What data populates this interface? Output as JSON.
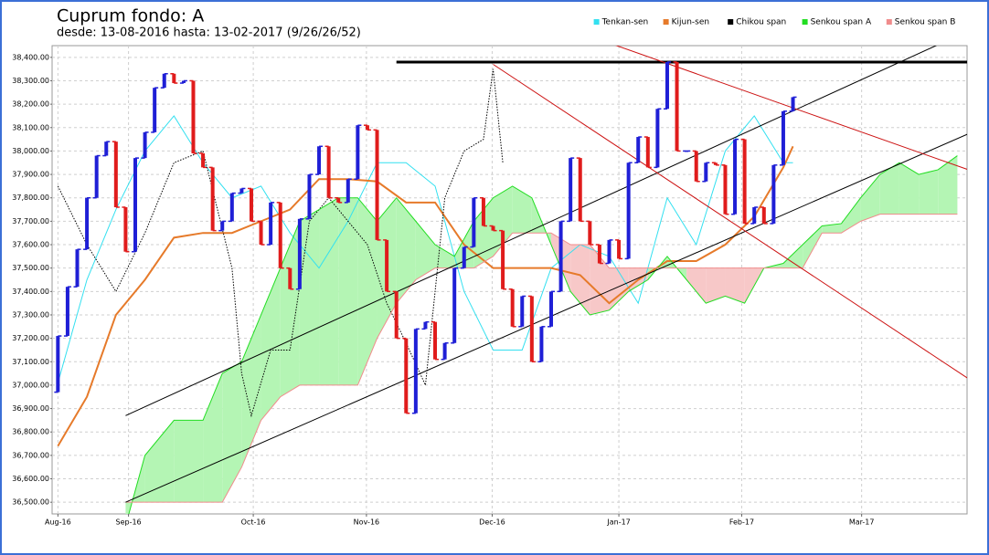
{
  "chart_data": {
    "type": "ohlc",
    "title": "Cuprum fondo: A",
    "subtitle": "desde: 13-08-2016 hasta: 13-02-2017 (9/26/26/52)",
    "up_color": "#1f1fd6",
    "down_color": "#e01c1c",
    "cloud_up_color": "#b4f5b4",
    "cloud_down_color": "#f7c8c8",
    "grid": true,
    "legend": "top-right",
    "xlim": [
      -0.6,
      94
    ],
    "xticks": [
      {
        "value": 0,
        "label": "Aug-16"
      },
      {
        "value": 7.3,
        "label": "Sep-16"
      },
      {
        "value": 20.2,
        "label": "Oct-16"
      },
      {
        "value": 31.9,
        "label": "Nov-16"
      },
      {
        "value": 44.9,
        "label": "Dec-16"
      },
      {
        "value": 58,
        "label": "Jan-17"
      },
      {
        "value": 70.7,
        "label": "Feb-17"
      },
      {
        "value": 83.1,
        "label": "Mar-17"
      }
    ],
    "ylim": [
      36450,
      38450
    ],
    "yticks": [
      {
        "value": 36500,
        "label": "36,500.00"
      },
      {
        "value": 36600,
        "label": "36,600.00"
      },
      {
        "value": 36700,
        "label": "36,700.00"
      },
      {
        "value": 36800,
        "label": "36,800.00"
      },
      {
        "value": 36900,
        "label": "36,900.00"
      },
      {
        "value": 37000,
        "label": "37,000.00"
      },
      {
        "value": 37100,
        "label": "37,100.00"
      },
      {
        "value": 37200,
        "label": "37,200.00"
      },
      {
        "value": 37300,
        "label": "37,300.00"
      },
      {
        "value": 37400,
        "label": "37,400.00"
      },
      {
        "value": 37500,
        "label": "37,500.00"
      },
      {
        "value": 37600,
        "label": "37,600.00"
      },
      {
        "value": 37700,
        "label": "37,700.00"
      },
      {
        "value": 37800,
        "label": "37,800.00"
      },
      {
        "value": 37900,
        "label": "37,900.00"
      },
      {
        "value": 38000,
        "label": "38,000.00"
      },
      {
        "value": 38100,
        "label": "38,100.00"
      },
      {
        "value": 38200,
        "label": "38,200.00"
      },
      {
        "value": 38300,
        "label": "38,300.00"
      },
      {
        "value": 38400,
        "label": "38,400.00"
      }
    ],
    "open": [
      36970,
      37210,
      37420,
      37580,
      37800,
      37980,
      38040,
      37760,
      37570,
      37970,
      38080,
      38270,
      38330,
      38290,
      38300,
      37990,
      37930,
      37660,
      37700,
      37820,
      37840,
      37700,
      37600,
      37780,
      37500,
      37410,
      37710,
      37900,
      38020,
      37800,
      37780,
      37880,
      38110,
      38090,
      37620,
      37400,
      37200,
      36880,
      37240,
      37270,
      37110,
      37180,
      37500,
      37590,
      37800,
      37680,
      37660,
      37410,
      37250,
      37380,
      37100,
      37250,
      37400,
      37700,
      37970,
      37700,
      37600,
      37520,
      37620,
      37540,
      37950,
      38060,
      37930,
      38180,
      38380,
      38000,
      38000,
      37870,
      37950,
      37940,
      37730,
      38050,
      37690,
      37760,
      37690,
      37940,
      38170
    ],
    "close": [
      37210,
      37420,
      37580,
      37800,
      37980,
      38040,
      37760,
      37570,
      37970,
      38080,
      38270,
      38330,
      38290,
      38300,
      37990,
      37930,
      37660,
      37700,
      37820,
      37840,
      37700,
      37600,
      37780,
      37500,
      37410,
      37710,
      37900,
      38020,
      37800,
      37780,
      37880,
      38110,
      38090,
      37620,
      37400,
      37200,
      36880,
      37240,
      37270,
      37110,
      37180,
      37500,
      37590,
      37800,
      37680,
      37660,
      37410,
      37250,
      37380,
      37100,
      37250,
      37400,
      37700,
      37970,
      37700,
      37600,
      37520,
      37620,
      37540,
      37950,
      38060,
      37930,
      38180,
      38380,
      38000,
      38000,
      37870,
      37950,
      37940,
      37730,
      38050,
      37690,
      37760,
      37690,
      37940,
      38170,
      38230
    ],
    "series": [
      {
        "name": "Tenkan-sen",
        "color": "#33e0f0",
        "style": "solid",
        "x": [
          0,
          3,
          6,
          9,
          12,
          15,
          18,
          21,
          24,
          27,
          30,
          33,
          36,
          39,
          42,
          45,
          48,
          51,
          54,
          57,
          60,
          63,
          66,
          69,
          72,
          75,
          76
        ],
        "values": [
          37010,
          37450,
          37750,
          38000,
          38150,
          37950,
          37800,
          37850,
          37650,
          37500,
          37700,
          37950,
          37950,
          37850,
          37400,
          37150,
          37150,
          37500,
          37600,
          37550,
          37350,
          37800,
          37600,
          38000,
          38150,
          37950,
          37950
        ]
      },
      {
        "name": "Kijun-sen",
        "color": "#e67a2a",
        "style": "thick",
        "x": [
          0,
          3,
          6,
          9,
          12,
          15,
          18,
          21,
          24,
          27,
          30,
          33,
          36,
          39,
          42,
          45,
          48,
          51,
          54,
          57,
          60,
          63,
          66,
          69,
          72,
          75,
          76
        ],
        "values": [
          36740,
          36950,
          37300,
          37450,
          37630,
          37650,
          37650,
          37700,
          37750,
          37880,
          37880,
          37870,
          37780,
          37780,
          37600,
          37500,
          37500,
          37500,
          37470,
          37350,
          37450,
          37530,
          37530,
          37600,
          37720,
          37930,
          38020
        ]
      },
      {
        "name": "Chikou span",
        "color": "#000000",
        "style": "dotted",
        "x": [
          0,
          3,
          6,
          9,
          12,
          15,
          18,
          19,
          20,
          22,
          24,
          26,
          28,
          30,
          32,
          34,
          36,
          38,
          40,
          42,
          44,
          45,
          46
        ],
        "values": [
          37850,
          37600,
          37400,
          37650,
          37950,
          38000,
          37500,
          37050,
          36870,
          37150,
          37150,
          37700,
          37800,
          37700,
          37600,
          37350,
          37180,
          37000,
          37800,
          38000,
          38050,
          38350,
          37950
        ]
      },
      {
        "name": "Senkou span A",
        "color": "#22dd22",
        "style": "solid",
        "cloud": "a",
        "x": [
          7,
          9,
          12,
          15,
          17,
          19,
          21,
          23,
          25,
          27,
          29,
          31,
          33,
          35,
          37,
          39,
          41,
          43,
          45,
          47,
          49,
          51,
          53,
          55,
          57,
          59,
          61,
          63,
          65,
          67,
          69,
          71,
          73,
          75,
          77,
          79,
          81,
          83,
          85,
          87,
          89,
          91,
          93
        ],
        "values": [
          36400,
          36700,
          36850,
          36850,
          37050,
          37100,
          37300,
          37500,
          37700,
          37750,
          37800,
          37800,
          37700,
          37800,
          37700,
          37600,
          37550,
          37700,
          37800,
          37850,
          37800,
          37600,
          37400,
          37300,
          37320,
          37400,
          37450,
          37550,
          37450,
          37350,
          37380,
          37350,
          37500,
          37520,
          37600,
          37680,
          37690,
          37800,
          37900,
          37950,
          37900,
          37920,
          37980
        ]
      },
      {
        "name": "Senkou span B",
        "color": "#f08c8c",
        "style": "solid",
        "cloud": "b",
        "x": [
          7,
          9,
          12,
          15,
          17,
          19,
          21,
          23,
          25,
          27,
          29,
          31,
          33,
          35,
          37,
          39,
          41,
          43,
          45,
          47,
          49,
          51,
          53,
          55,
          57,
          59,
          61,
          63,
          65,
          67,
          69,
          71,
          73,
          75,
          77,
          79,
          81,
          83,
          85,
          87,
          89,
          91,
          93
        ],
        "values": [
          36500,
          36500,
          36500,
          36500,
          36500,
          36650,
          36850,
          36950,
          37000,
          37000,
          37000,
          37000,
          37200,
          37350,
          37450,
          37500,
          37500,
          37500,
          37550,
          37650,
          37650,
          37650,
          37600,
          37600,
          37500,
          37500,
          37500,
          37500,
          37500,
          37500,
          37500,
          37500,
          37500,
          37500,
          37500,
          37650,
          37650,
          37700,
          37730,
          37730,
          37730,
          37730,
          37730
        ]
      }
    ],
    "trendlines": [
      {
        "x": [
          35,
          94
        ],
        "y": [
          38380,
          38380
        ],
        "color": "#000000",
        "width": 3
      },
      {
        "x": [
          7,
          94.5
        ],
        "y": [
          36870,
          38520
        ],
        "color": "#000000",
        "width": 1
      },
      {
        "x": [
          7,
          94.5
        ],
        "y": [
          36500,
          38080
        ],
        "color": "#000000",
        "width": 1
      },
      {
        "x": [
          54,
          95.5
        ],
        "y": [
          38505,
          37900
        ],
        "color": "#cc1111",
        "width": 1
      },
      {
        "x": [
          45,
          94.6
        ],
        "y": [
          38370,
          37015
        ],
        "color": "#cc1111",
        "width": 1
      }
    ]
  }
}
